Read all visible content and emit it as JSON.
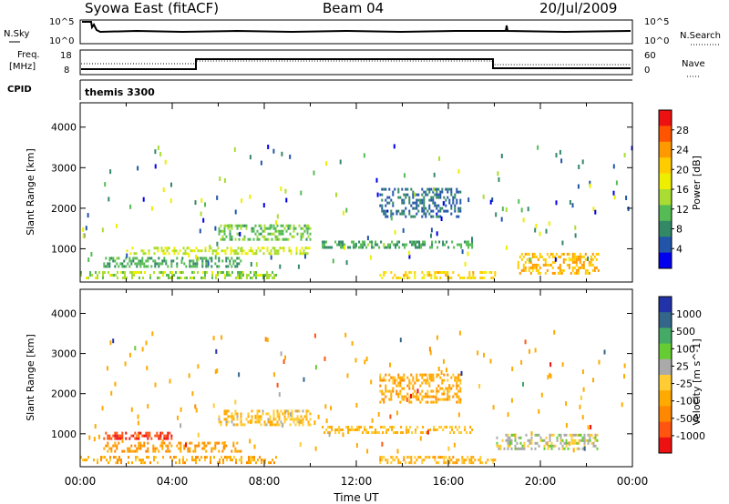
{
  "header": {
    "title_left": "Syowa East (fitACF)",
    "title_center": "Beam 04",
    "title_right": "20/Jul/2009"
  },
  "strips": {
    "nsky": {
      "label": "N.Sky",
      "left_ticks": [
        "10^5",
        "10^0"
      ],
      "right_label": "N.Search",
      "right_ticks": [
        "10^5",
        "10^0"
      ]
    },
    "freq": {
      "label_line1": "Freq.",
      "label_line2": "[MHz]",
      "left_ticks": [
        "18",
        "8"
      ],
      "right_label": "Nave",
      "right_ticks": [
        "60",
        "0"
      ]
    },
    "cpid": {
      "label": "CPID",
      "value": "themis 3300"
    }
  },
  "panels": {
    "power": {
      "ylabel": "Slant Range [km]",
      "scale_label": "Power [dB]",
      "scale_ticks": [
        "28",
        "24",
        "20",
        "16",
        "12",
        "8",
        "4"
      ],
      "scale_colors": [
        "#ee1111",
        "#ff5500",
        "#ff9900",
        "#ffcc00",
        "#eeee00",
        "#aadd33",
        "#55bb55",
        "#338866",
        "#2255aa",
        "#0000ee"
      ]
    },
    "velocity": {
      "ylabel": "Slant Range [km]",
      "scale_label": "Velocity [m s^-1]",
      "scale_ticks": [
        "1000",
        "500",
        "100",
        "25",
        "-25",
        "-100",
        "-500",
        "-1000"
      ],
      "scale_colors": [
        "#2233aa",
        "#336688",
        "#44aa66",
        "#66cc33",
        "#aaaaaa",
        "#ffcc33",
        "#ffaa00",
        "#ff8800",
        "#ff5511",
        "#ee1111"
      ]
    }
  },
  "chart_data": [
    {
      "type": "heatmap",
      "ylabel": "Slant Range [km]",
      "ylim": [
        180,
        4600
      ],
      "x_range": [
        "00:00",
        "24:00"
      ],
      "yticks": [
        "1000",
        "2000",
        "3000",
        "4000"
      ],
      "color_scale": {
        "label": "Power [dB]",
        "range": [
          0,
          32
        ]
      },
      "bands": [
        {
          "start": 0.0,
          "end": 8.5,
          "range_min": 250,
          "range_max": 450,
          "value": 14
        },
        {
          "start": 1.0,
          "end": 7.0,
          "range_min": 550,
          "range_max": 800,
          "value": 10
        },
        {
          "start": 2.0,
          "end": 10.0,
          "range_min": 900,
          "range_max": 1050,
          "value": 16
        },
        {
          "start": 6.0,
          "end": 10.0,
          "range_min": 1200,
          "range_max": 1600,
          "value": 12
        },
        {
          "start": 10.5,
          "end": 17.0,
          "range_min": 1000,
          "range_max": 1200,
          "value": 10
        },
        {
          "start": 13.0,
          "end": 16.5,
          "range_min": 1800,
          "range_max": 2500,
          "value": 6
        },
        {
          "start": 13.0,
          "end": 18.0,
          "range_min": 250,
          "range_max": 450,
          "value": 20
        },
        {
          "start": 19.0,
          "end": 22.5,
          "range_min": 400,
          "range_max": 900,
          "value": 22
        }
      ]
    },
    {
      "type": "heatmap",
      "ylabel": "Slant Range [km]",
      "ylim": [
        180,
        4600
      ],
      "x_range": [
        "00:00",
        "24:00"
      ],
      "yticks": [
        "1000",
        "2000",
        "3000",
        "4000"
      ],
      "xticks": [
        "00:00",
        "04:00",
        "08:00",
        "12:00",
        "16:00",
        "20:00",
        "00:00"
      ],
      "xlabel": "Time UT",
      "color_scale": {
        "label": "Velocity [m s^-1]",
        "range": [
          -1000,
          1000
        ]
      },
      "bands": [
        {
          "start": 0.0,
          "end": 8.5,
          "range_min": 250,
          "range_max": 450,
          "value": -300
        },
        {
          "start": 1.0,
          "end": 7.0,
          "range_min": 550,
          "range_max": 800,
          "value": -400
        },
        {
          "start": 1.0,
          "end": 4.0,
          "range_min": 850,
          "range_max": 1050,
          "value": -800
        },
        {
          "start": 6.0,
          "end": 10.0,
          "range_min": 1200,
          "range_max": 1600,
          "value": -150
        },
        {
          "start": 10.5,
          "end": 17.0,
          "range_min": 1000,
          "range_max": 1200,
          "value": -200
        },
        {
          "start": 13.0,
          "end": 16.5,
          "range_min": 1800,
          "range_max": 2500,
          "value": -300
        },
        {
          "start": 13.0,
          "end": 18.0,
          "range_min": 250,
          "range_max": 450,
          "value": -250
        },
        {
          "start": 18.0,
          "end": 22.5,
          "range_min": 600,
          "range_max": 1000,
          "value": 80
        }
      ]
    }
  ]
}
